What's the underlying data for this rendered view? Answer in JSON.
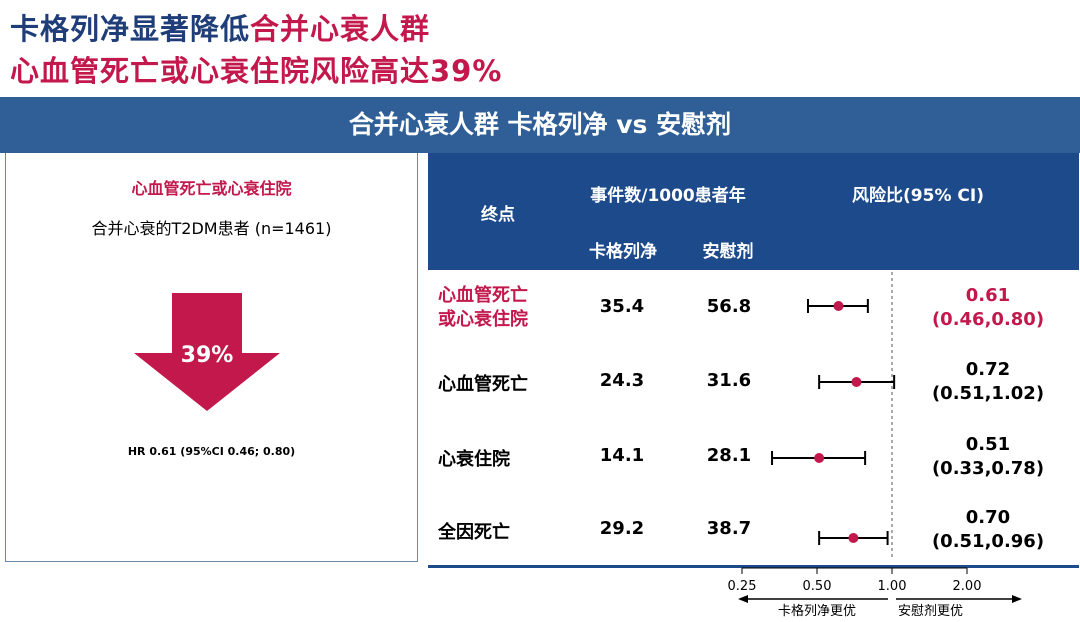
{
  "title": {
    "line1_part1": "卡格列净显著降低",
    "line1_part2": "合并心衰人群",
    "line2": "心血管死亡或心衰住院风险高达39%"
  },
  "banner": "合并心衰人群 卡格列净 vs 安慰剂",
  "left_panel": {
    "heading": "心血管死亡或心衰住院",
    "subtitle": "合并心衰的T2DM患者 (n=1461)",
    "reduction": "39%",
    "hr_note": "HR 0.61 (95%CI 0.46; 0.80)"
  },
  "table": {
    "header_endpoint": "终点",
    "header_events": "事件数/1000患者年",
    "header_drug": "卡格列净",
    "header_placebo": "安慰剂",
    "header_hr": "风险比(95% CI)",
    "rows": [
      {
        "endpoint_l1": "心血管死亡",
        "endpoint_l2": "或心衰住院",
        "drug": "35.4",
        "placebo": "56.8",
        "hr": "0.61",
        "ci": "(0.46,0.80)",
        "highlight": true
      },
      {
        "endpoint_l1": "心血管死亡",
        "endpoint_l2": "",
        "drug": "24.3",
        "placebo": "31.6",
        "hr": "0.72",
        "ci": "(0.51,1.02)",
        "highlight": false
      },
      {
        "endpoint_l1": "心衰住院",
        "endpoint_l2": "",
        "drug": "14.1",
        "placebo": "28.1",
        "hr": "0.51",
        "ci": "(0.33,0.78)",
        "highlight": false
      },
      {
        "endpoint_l1": "全因死亡",
        "endpoint_l2": "",
        "drug": "29.2",
        "placebo": "38.7",
        "hr": "0.70",
        "ci": "(0.51,0.96)",
        "highlight": false
      }
    ]
  },
  "chart_data": {
    "type": "scatter",
    "subtype": "forest",
    "x_scale": "log",
    "xlim": [
      0.25,
      2.0
    ],
    "reference_line": 1.0,
    "x_ticks": [
      "0.25",
      "0.50",
      "1.00",
      "2.00"
    ],
    "categories": [
      "心血管死亡或心衰住院",
      "心血管死亡",
      "心衰住院",
      "全因死亡"
    ],
    "values": [
      0.61,
      0.72,
      0.51,
      0.7
    ],
    "ci_low": [
      0.46,
      0.51,
      0.33,
      0.51
    ],
    "ci_high": [
      0.8,
      1.02,
      0.78,
      0.96
    ],
    "left_label": "卡格列净更优",
    "right_label": "安慰剂更优",
    "marker_color": "#c2184c"
  },
  "colors": {
    "accent_red": "#c2184c",
    "navy": "#1f3d78",
    "banner": "#2f5f96",
    "table_header": "#1c4a8a"
  }
}
